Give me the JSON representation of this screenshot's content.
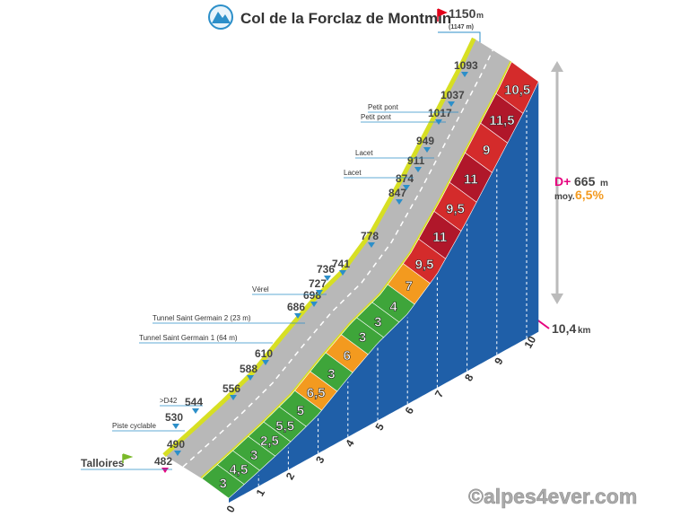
{
  "header": {
    "title": "Col de la Forclaz de Montmin",
    "summit_altitude": "1150",
    "summit_unit": "m",
    "summit_alt_note": "(1147 m)"
  },
  "stats": {
    "gain_label": "D+",
    "gain_value": "665",
    "gain_unit": "m",
    "avg_label": "moy.",
    "avg_value": "6,5%",
    "distance_value": "10,4",
    "distance_unit": "km"
  },
  "waypoints": [
    {
      "altitude": "482",
      "label": "Talloires"
    },
    {
      "altitude": "490",
      "label": "Piste cyclable"
    },
    {
      "altitude": "530"
    },
    {
      "altitude": "544",
      "label": ">D42"
    },
    {
      "altitude": "556"
    },
    {
      "altitude": "588"
    },
    {
      "altitude": "610",
      "label": "Tunnel Saint Germain 1 (64 m)"
    },
    {
      "altitude": "686",
      "label": "Tunnel Saint Germain 2 (23 m)"
    },
    {
      "altitude": "698"
    },
    {
      "altitude": "727",
      "label": "Vérel"
    },
    {
      "altitude": "736"
    },
    {
      "altitude": "741"
    },
    {
      "altitude": "778"
    },
    {
      "altitude": "847"
    },
    {
      "altitude": "874",
      "label": "Lacet"
    },
    {
      "altitude": "911"
    },
    {
      "altitude": "949",
      "label": "Lacet"
    },
    {
      "altitude": "1017",
      "label": "Petit pont"
    },
    {
      "altitude": "1037",
      "label": "Petit pont"
    },
    {
      "altitude": "1093"
    }
  ],
  "segments": [
    "3",
    "4,5",
    "3",
    "2,5",
    "5,5",
    "5",
    "6,5",
    "3",
    "6",
    "3",
    "3",
    "4",
    "7",
    "9,5",
    "11",
    "9,5",
    "11",
    "9",
    "11,5",
    "10,5"
  ],
  "km_ticks": [
    "0",
    "1",
    "2",
    "3",
    "4",
    "5",
    "6",
    "7",
    "8",
    "9",
    "10"
  ],
  "watermark": "©alpes4ever.com"
}
